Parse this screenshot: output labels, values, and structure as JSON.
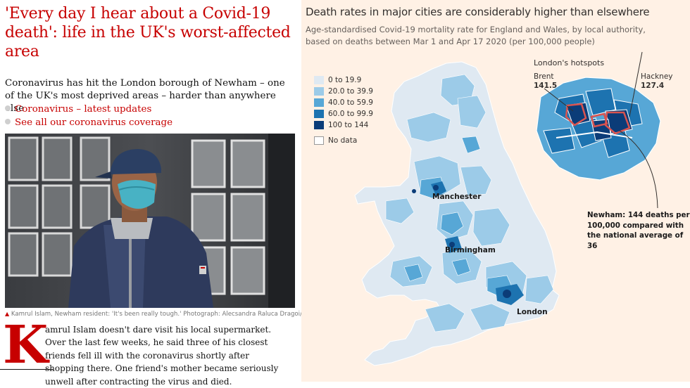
{
  "article": {
    "headline": "'Every day I hear about a Covid-19 death': life in the UK's worst-affected area",
    "standfirst": "Coronavirus has hit the London borough of Newham – one of the UK's most deprived areas – harder than anywhere else",
    "links": [
      {
        "label": "Coronavirus – latest updates"
      },
      {
        "label": "See all our coronavirus coverage"
      }
    ],
    "caption": "Kamrul Islam, Newham resident: 'It's been really tough.' Photograph: Alecsandra Raluca Dragoi/The Guardian",
    "dropcap": "K",
    "body": "amrul Islam doesn't dare visit his local supermarket. Over the last few weeks, he said three of his closest friends fell ill with the coronavirus shortly after shopping there. One friend's mother became seriously unwell after contracting the virus and died."
  },
  "graphic": {
    "title": "Death rates in major cities are considerably higher than elsewhere",
    "subtitle": "Age-standardised Covid-19 mortality rate for England and Wales, by local authority, based on deaths between Mar 1 and Apr 17 2020 (per 100,000 people)",
    "legend": [
      {
        "label": "0 to 19.9",
        "color": "#dfe9f2"
      },
      {
        "label": "20.0 to 39.9",
        "color": "#9ccbe8"
      },
      {
        "label": "40.0 to 59.9",
        "color": "#57a7d6"
      },
      {
        "label": "60.0 to 99.9",
        "color": "#1d73b0"
      },
      {
        "label": "100 to 144",
        "color": "#0b3c78"
      },
      {
        "label": "No data",
        "color": "#ffffff"
      }
    ],
    "cities": {
      "manchester": "Manchester",
      "birmingham": "Birmingham",
      "london": "London"
    },
    "hotspots": {
      "title": "London's hotspots",
      "brent_name": "Brent",
      "brent_value": "141.5",
      "hackney_name": "Hackney",
      "hackney_value": "127.4",
      "newham_note": "Newham: 144 deaths per 100,000 compared with the national average of 36"
    }
  }
}
